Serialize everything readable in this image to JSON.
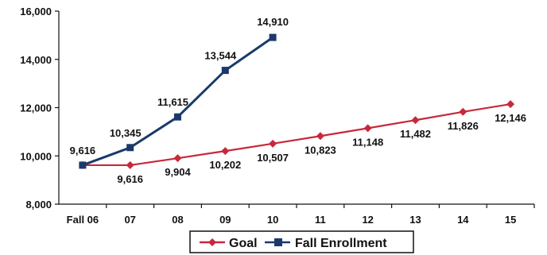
{
  "chart_data": {
    "type": "line",
    "title": "",
    "xlabel": "",
    "ylabel": "",
    "categories": [
      "Fall 06",
      "07",
      "08",
      "09",
      "10",
      "11",
      "12",
      "13",
      "14",
      "15"
    ],
    "ylim": [
      8000,
      16000
    ],
    "yticks": [
      "8,000",
      "10,000",
      "12,000",
      "14,000",
      "16,000"
    ],
    "ytick_values": [
      8000,
      10000,
      12000,
      14000,
      16000
    ],
    "grid": false,
    "legend_position": "bottom",
    "series": [
      {
        "name": "Goal",
        "color": "#c8283c",
        "marker": "diamond",
        "values": [
          9616,
          9616,
          9904,
          10202,
          10507,
          10823,
          11148,
          11482,
          11826,
          12146
        ],
        "labels": [
          "",
          "9,616",
          "9,904",
          "10,202",
          "10,507",
          "10,823",
          "11,148",
          "11,482",
          "11,826",
          "12,146"
        ]
      },
      {
        "name": "Fall Enrollment",
        "color": "#1b3a6b",
        "marker": "square",
        "values": [
          9616,
          10345,
          11615,
          13544,
          14910,
          null,
          null,
          null,
          null,
          null
        ],
        "labels": [
          "9,616",
          "10,345",
          "11,615",
          "13,544",
          "14,910"
        ]
      }
    ]
  }
}
